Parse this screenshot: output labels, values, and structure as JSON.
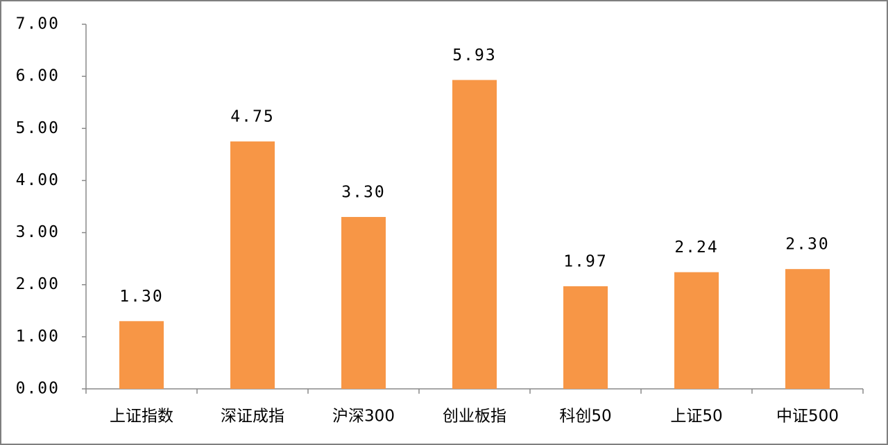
{
  "chart_data": {
    "type": "bar",
    "categories": [
      "上证指数",
      "深证成指",
      "沪深300",
      "创业板指",
      "科创50",
      "上证50",
      "中证500"
    ],
    "values": [
      1.3,
      4.75,
      3.3,
      5.93,
      1.97,
      2.24,
      2.3
    ],
    "value_labels": [
      "1.30",
      "4.75",
      "3.30",
      "5.93",
      "1.97",
      "2.24",
      "2.30"
    ],
    "color": "#f79646",
    "ylim": [
      0,
      7
    ],
    "yticks": [
      {
        "value": 0,
        "label": "0.00"
      },
      {
        "value": 1,
        "label": "1.00"
      },
      {
        "value": 2,
        "label": "2.00"
      },
      {
        "value": 3,
        "label": "3.00"
      },
      {
        "value": 4,
        "label": "4.00"
      },
      {
        "value": 5,
        "label": "5.00"
      },
      {
        "value": 6,
        "label": "6.00"
      },
      {
        "value": 7,
        "label": "7.00"
      }
    ],
    "grid": false
  }
}
